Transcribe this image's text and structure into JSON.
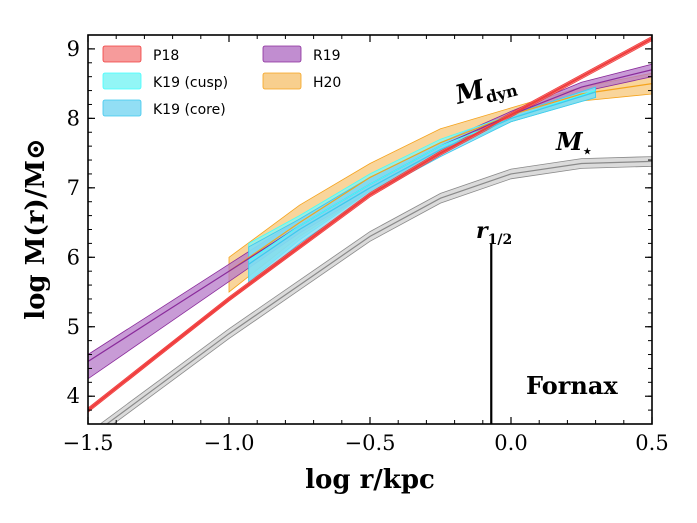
{
  "chart_data": {
    "type": "line",
    "title": "",
    "xlabel": "log r/kpc",
    "ylabel": "log M(r)/M⊙",
    "xlim": [
      -1.5,
      0.5
    ],
    "ylim": [
      3.6,
      9.2
    ],
    "xticks": [
      -1.5,
      -1.0,
      -0.5,
      0.0,
      0.5
    ],
    "xtick_labels": [
      "−1.5",
      "−1.0",
      "−0.5",
      "0.0",
      "0.5"
    ],
    "yticks": [
      4,
      5,
      6,
      7,
      8,
      9
    ],
    "ytick_labels": [
      "4",
      "5",
      "6",
      "7",
      "8",
      "9"
    ],
    "legend_position": "top-left",
    "series": [
      {
        "name": "P18",
        "color": "#f03c3c",
        "fill": "#f58a8a",
        "x": [
          -1.5,
          -1.25,
          -1.0,
          -0.75,
          -0.5,
          -0.25,
          0.0,
          0.25,
          0.5
        ],
        "mid": [
          3.8,
          4.6,
          5.4,
          6.15,
          6.9,
          7.5,
          8.05,
          8.6,
          9.15
        ],
        "low": [
          3.77,
          4.57,
          5.37,
          6.12,
          6.87,
          7.47,
          8.02,
          8.57,
          9.12
        ],
        "high": [
          3.83,
          4.63,
          5.43,
          6.18,
          6.93,
          7.53,
          8.08,
          8.63,
          9.18
        ]
      },
      {
        "name": "K19 (cusp)",
        "color": "#40ffff",
        "fill": "#7ff5f5",
        "x": [
          -0.93,
          -0.75,
          -0.5,
          -0.25,
          0.0,
          0.3
        ],
        "mid": [
          5.95,
          6.45,
          7.05,
          7.6,
          8.0,
          8.4
        ],
        "low": [
          5.65,
          6.25,
          6.95,
          7.5,
          7.95,
          8.3
        ],
        "high": [
          6.2,
          6.6,
          7.2,
          7.7,
          8.05,
          8.45
        ]
      },
      {
        "name": "K19 (core)",
        "color": "#3ec8ee",
        "fill": "#7fd8f2",
        "x": [
          -0.93,
          -0.75,
          -0.5,
          -0.25,
          0.0,
          0.3
        ],
        "mid": [
          5.9,
          6.4,
          7.0,
          7.55,
          8.0,
          8.38
        ],
        "low": [
          5.6,
          6.2,
          6.9,
          7.45,
          7.95,
          8.3
        ],
        "high": [
          6.15,
          6.55,
          7.15,
          7.65,
          8.05,
          8.45
        ]
      },
      {
        "name": "R19",
        "color": "#8a2b9b",
        "fill": "#b679c8",
        "x": [
          -1.5,
          -1.25,
          -1.0,
          -0.75,
          -0.5,
          -0.25,
          0.0,
          0.25,
          0.5
        ],
        "mid": [
          4.5,
          5.15,
          5.8,
          6.45,
          7.05,
          7.6,
          8.05,
          8.45,
          8.7
        ],
        "low": [
          4.25,
          4.95,
          5.65,
          6.35,
          6.95,
          7.55,
          8.0,
          8.38,
          8.6
        ],
        "high": [
          4.6,
          5.25,
          5.9,
          6.55,
          7.15,
          7.65,
          8.1,
          8.52,
          8.78
        ]
      },
      {
        "name": "H20",
        "color": "#f5a31c",
        "fill": "#f7c77a",
        "x": [
          -1.0,
          -0.75,
          -0.5,
          -0.25,
          0.0,
          0.25,
          0.5
        ],
        "mid": [
          5.8,
          6.5,
          7.15,
          7.65,
          8.05,
          8.35,
          8.5
        ],
        "low": [
          5.5,
          6.3,
          6.95,
          7.5,
          7.95,
          8.25,
          8.35
        ],
        "high": [
          6.0,
          6.75,
          7.35,
          7.85,
          8.15,
          8.45,
          8.65
        ]
      },
      {
        "name": "M⋆",
        "color": "#8a8a8a",
        "fill": "#cfcfcf",
        "x": [
          -1.5,
          -1.25,
          -1.0,
          -0.75,
          -0.5,
          -0.25,
          0.0,
          0.25,
          0.5
        ],
        "mid": [
          3.4,
          4.15,
          4.9,
          5.6,
          6.3,
          6.85,
          7.2,
          7.35,
          7.38
        ],
        "low": [
          3.33,
          4.08,
          4.83,
          5.53,
          6.23,
          6.78,
          7.13,
          7.28,
          7.31
        ],
        "high": [
          3.47,
          4.22,
          4.97,
          5.67,
          6.37,
          6.92,
          7.27,
          7.42,
          7.45
        ]
      }
    ],
    "legend": [
      {
        "name": "P18",
        "color": "#f58a8a",
        "edge": "#f03c3c"
      },
      {
        "name": "K19 (cusp)",
        "color": "#7ff5f5",
        "edge": "#40ffff"
      },
      {
        "name": "K19 (core)",
        "color": "#7fd8f2",
        "edge": "#3ec8ee"
      },
      {
        "name": "R19",
        "color": "#b679c8",
        "edge": "#8a2b9b"
      },
      {
        "name": "H20",
        "color": "#f7c77a",
        "edge": "#f5a31c"
      }
    ],
    "annotations": {
      "half_light": {
        "label": "r",
        "sub": "1/2",
        "x": -0.07,
        "y_top": 6.2
      },
      "mdyn_label": {
        "main": "M",
        "sub": "dyn"
      },
      "mstar_label": {
        "main": "M",
        "sub": "⋆"
      },
      "galaxy": "Fornax"
    }
  }
}
